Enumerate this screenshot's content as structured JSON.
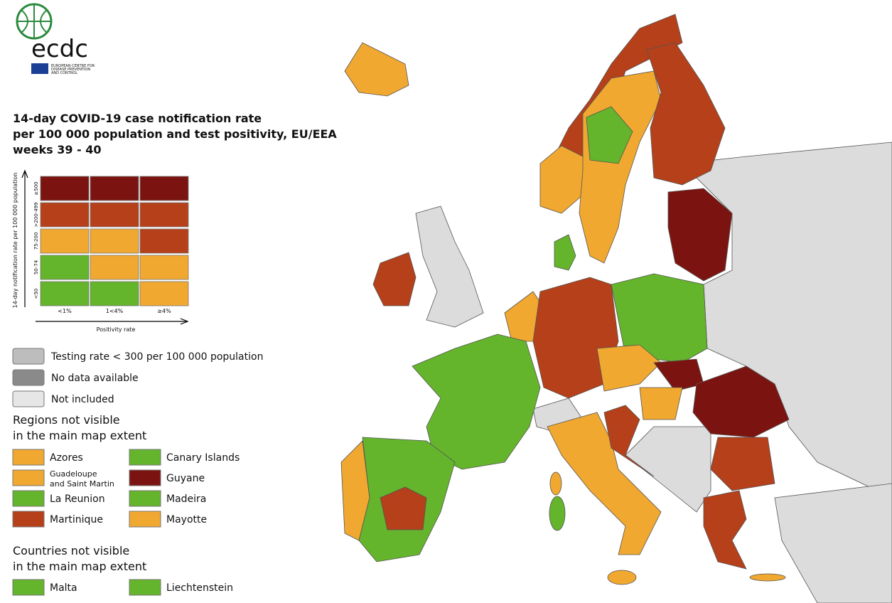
{
  "logo": {
    "text": "ecdc",
    "subtitle": [
      "EUROPEAN CENTRE FOR",
      "DISEASE PREVENTION",
      "AND CONTROL"
    ]
  },
  "title": [
    "14-day COVID-19 case notification rate",
    "per 100 000 population and test positivity, EU/EEA",
    "weeks 39 - 40"
  ],
  "matrix": {
    "y_axis_title": "14-day notification rate per 100 000 population",
    "x_axis_title": "Positivity rate",
    "rows": [
      "≥500",
      ">200-499",
      "75-200",
      "50-74",
      "<50"
    ],
    "columns": [
      "<1%",
      "1<4%",
      "≥4%"
    ],
    "cells": [
      [
        "#7b1410",
        "#7b1410",
        "#7b1410"
      ],
      [
        "#b5401a",
        "#b5401a",
        "#b5401a"
      ],
      [
        "#f0a830",
        "#f0a830",
        "#b5401a"
      ],
      [
        "#64b42c",
        "#f0a830",
        "#f0a830"
      ],
      [
        "#64b42c",
        "#64b42c",
        "#f0a830"
      ]
    ]
  },
  "status_legend": [
    {
      "label": "Testing rate < 300 per 100 000 population",
      "color": "#bdbdbd"
    },
    {
      "label": "No data available",
      "color": "#8a8a8a"
    },
    {
      "label": "Not included",
      "color": "#e6e6e6"
    }
  ],
  "regions_title": [
    "Regions not visible",
    "in the main map extent"
  ],
  "regions": [
    {
      "name": "Azores",
      "color": "#f0a830"
    },
    {
      "name": "Canary Islands",
      "color": "#64b42c"
    },
    {
      "name": "Guadeloupe\nand Saint Martin",
      "color": "#f0a830"
    },
    {
      "name": "Guyane",
      "color": "#7b1410"
    },
    {
      "name": "La Reunion",
      "color": "#64b42c"
    },
    {
      "name": "Madeira",
      "color": "#64b42c"
    },
    {
      "name": "Martinique",
      "color": "#b5401a"
    },
    {
      "name": "Mayotte",
      "color": "#f0a830"
    }
  ],
  "countries_title": [
    "Countries not visible",
    "in the main map extent"
  ],
  "countries": [
    {
      "name": "Malta",
      "color": "#64b42c"
    },
    {
      "name": "Liechtenstein",
      "color": "#64b42c"
    }
  ]
}
